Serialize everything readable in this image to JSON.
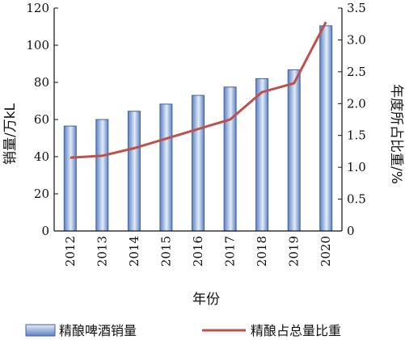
{
  "chart_data": {
    "type": "bar+line",
    "categories": [
      "2012",
      "2013",
      "2014",
      "2015",
      "2016",
      "2017",
      "2018",
      "2019",
      "2020"
    ],
    "series": [
      {
        "name": "精酿啤酒销量",
        "type": "bar",
        "axis": "left",
        "values": [
          56.5,
          60,
          64.5,
          68.3,
          73,
          77.5,
          82,
          86.8,
          110.5
        ]
      },
      {
        "name": "精酿占总量比重",
        "type": "line",
        "axis": "right",
        "values": [
          1.15,
          1.18,
          1.3,
          1.45,
          1.6,
          1.75,
          2.18,
          2.32,
          3.28
        ]
      }
    ],
    "xlabel": "年份",
    "ylabel_left": "销量/万kL",
    "ylabel_right": "年度所占比重/%",
    "ylim_left": [
      0,
      120
    ],
    "yticks_left": [
      0,
      20,
      40,
      60,
      80,
      100,
      120
    ],
    "ylim_right": [
      0,
      3.5
    ],
    "yticks_right": [
      "0",
      "0.5",
      "1.0",
      "1.5",
      "2.0",
      "2.5",
      "3.0",
      "3.5"
    ],
    "grid": false,
    "legend_position": "bottom",
    "colors": {
      "bar_fill_dark": "#5b82c2",
      "bar_fill_light": "#e4ecf8",
      "bar_stroke": "#3d62a8",
      "line": "#c0504d",
      "axis": "#111111"
    }
  }
}
